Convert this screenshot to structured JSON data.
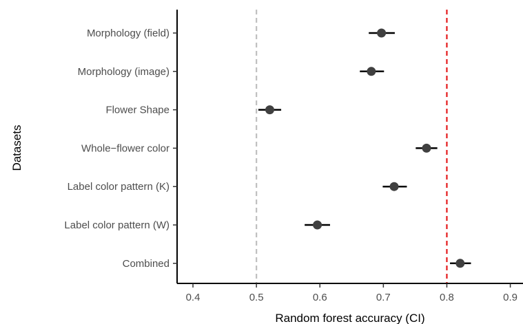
{
  "chart_data": {
    "type": "scatter",
    "subtype": "dot-and-whisker",
    "title": "",
    "xlabel": "Random forest accuracy (CI)",
    "ylabel": "Datasets",
    "xlim": [
      0.375,
      0.92
    ],
    "xticks": [
      0.4,
      0.5,
      0.6,
      0.7,
      0.8,
      0.9
    ],
    "xtick_labels": [
      "0.4",
      "0.5",
      "0.6",
      "0.7",
      "0.8",
      "0.9"
    ],
    "grid": false,
    "categories": [
      "Morphology (field)",
      "Morphology (image)",
      "Flower Shape",
      "Whole−flower color",
      "Label color pattern (K)",
      "Label color pattern (W)",
      "Combined"
    ],
    "values": [
      0.697,
      0.681,
      0.521,
      0.768,
      0.717,
      0.596,
      0.821
    ],
    "ci_low": [
      0.677,
      0.663,
      0.503,
      0.751,
      0.699,
      0.576,
      0.805
    ],
    "ci_high": [
      0.718,
      0.701,
      0.539,
      0.785,
      0.737,
      0.616,
      0.838
    ],
    "reference_lines": [
      {
        "value": 0.5,
        "color": "#bfbfbf",
        "style": "dashed"
      },
      {
        "value": 0.8,
        "color": "#e41a1c",
        "style": "dashed"
      }
    ],
    "colors": {
      "point": "#404040",
      "whisker": "#000000",
      "axis": "#000000",
      "tick_text": "#4d4d4d"
    }
  }
}
